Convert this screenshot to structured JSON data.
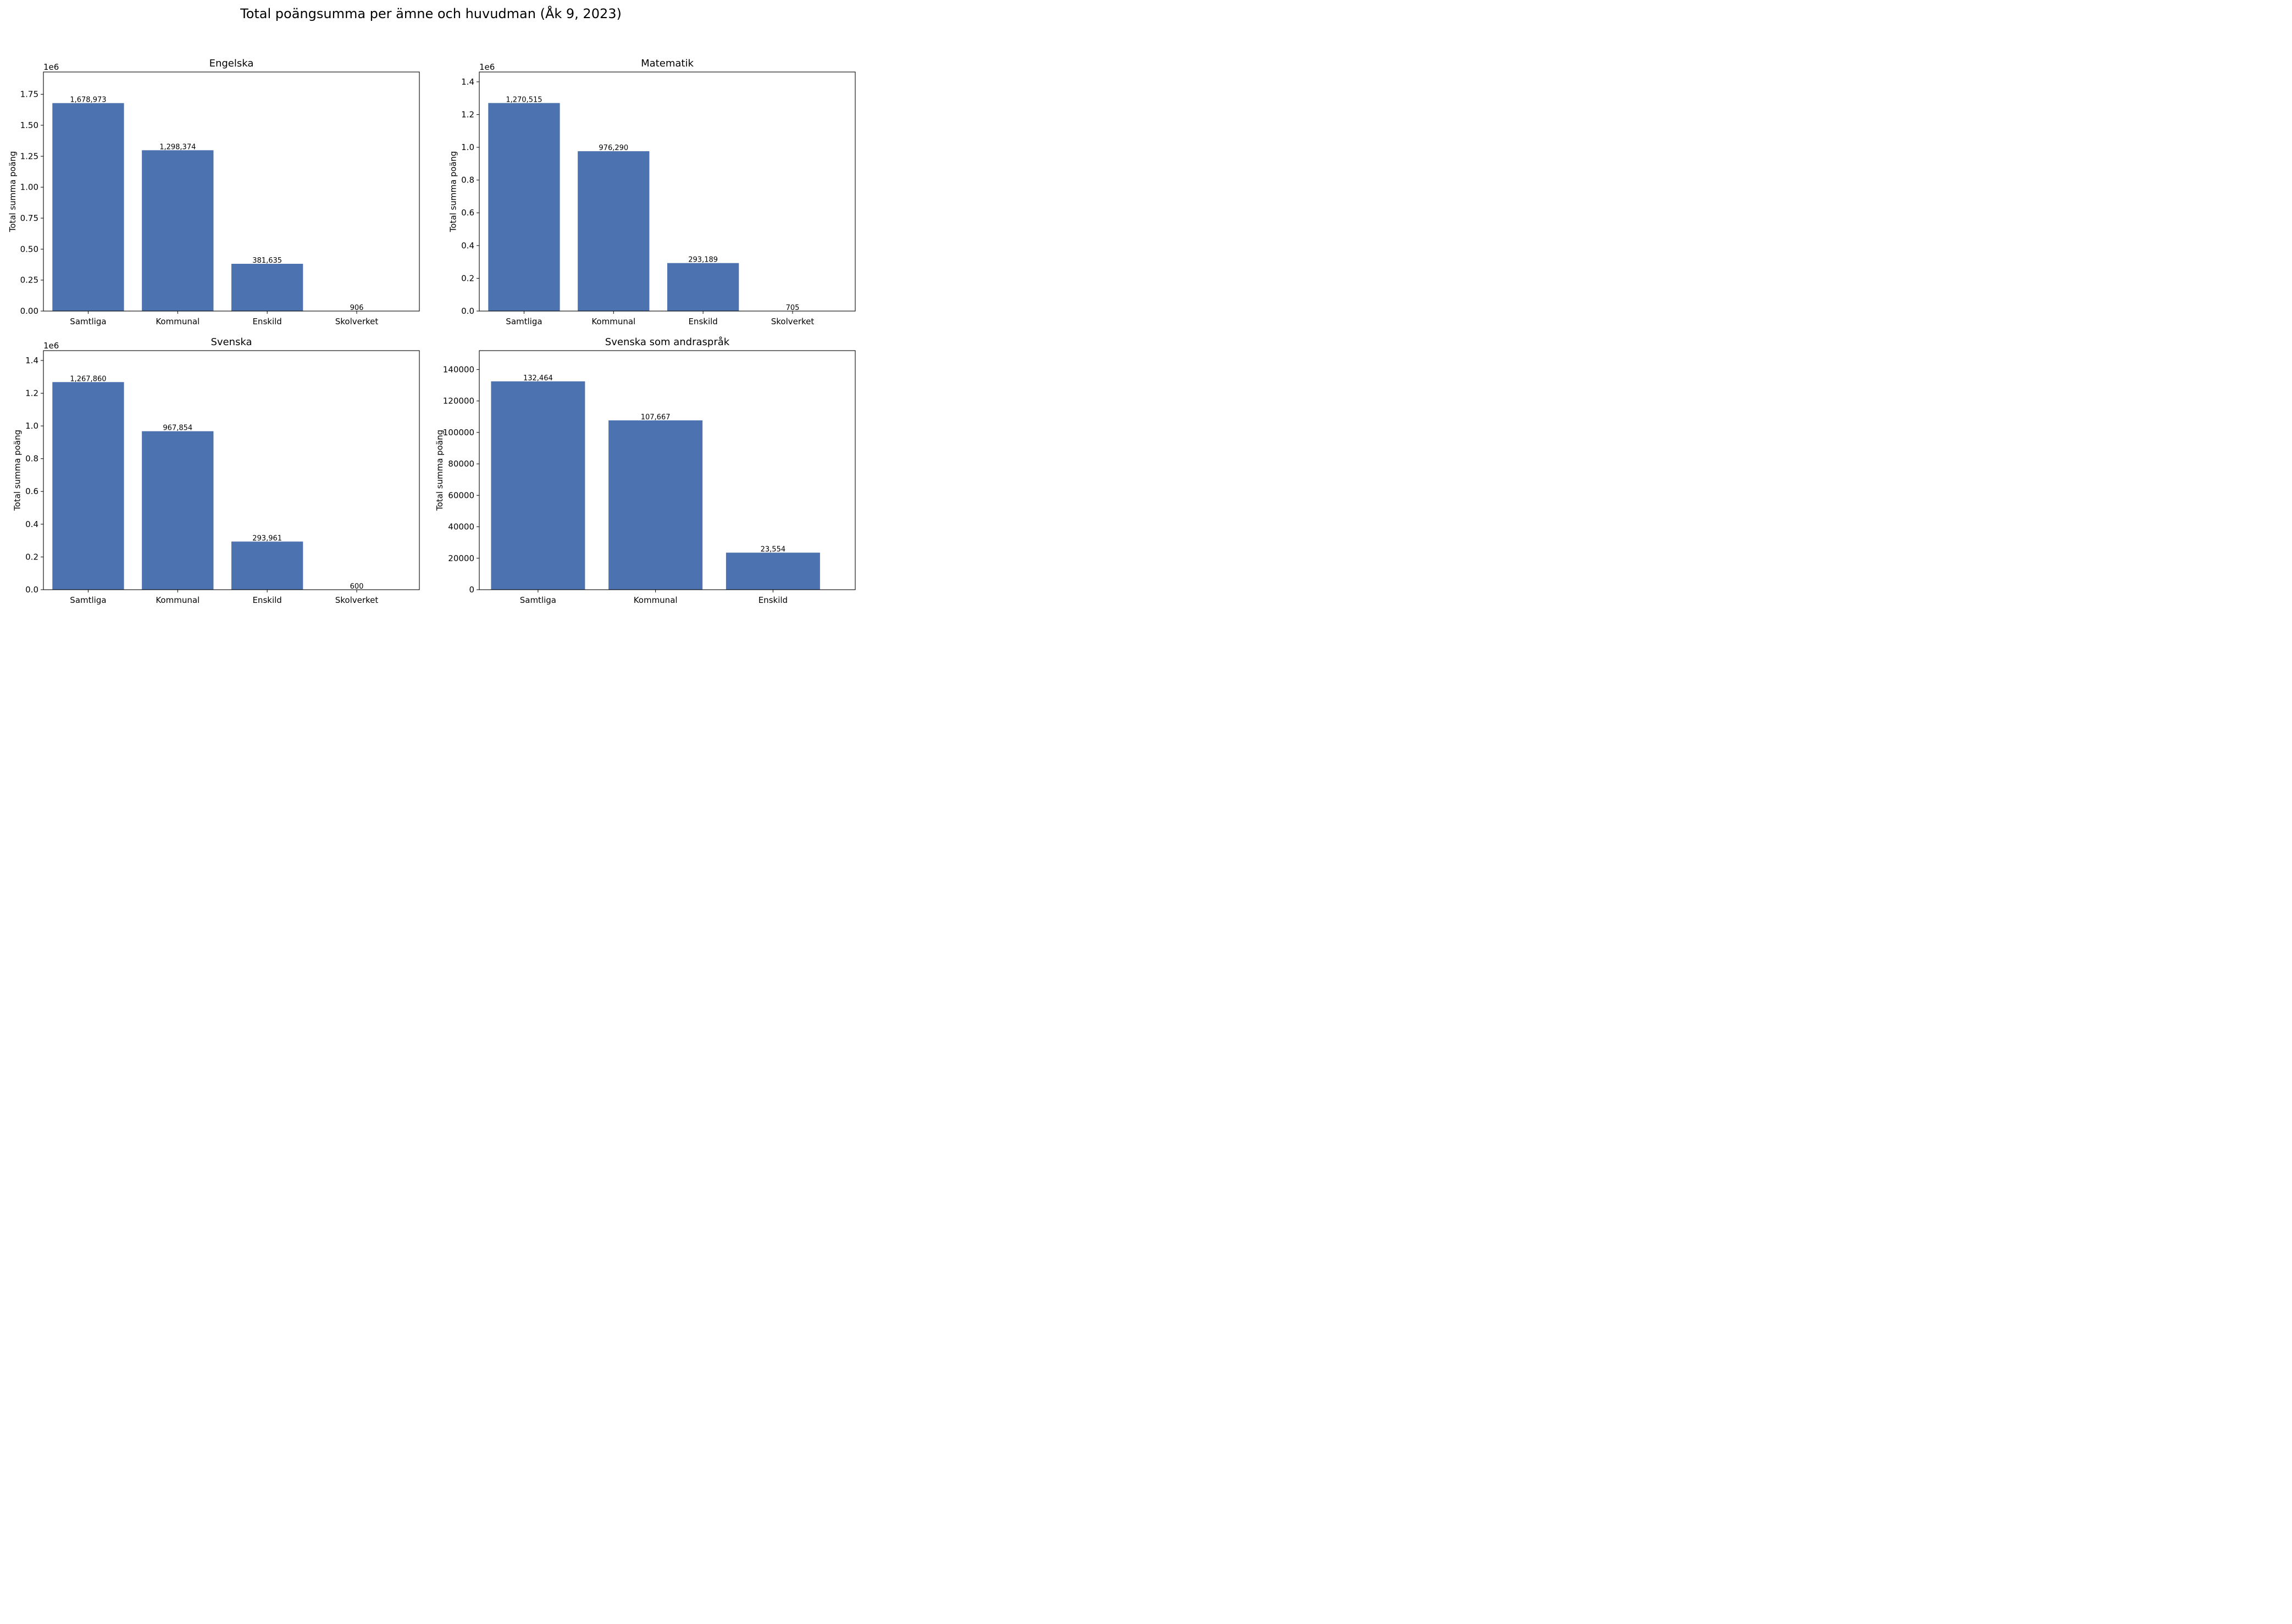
{
  "figure": {
    "suptitle": "Total poängsumma per ämne och huvudman (Åk 9, 2023)"
  },
  "colors": {
    "bar": "#4c72b0",
    "axis": "#000000",
    "background": "#ffffff"
  },
  "chart_data": [
    {
      "type": "bar",
      "title": "Engelska",
      "xlabel": "",
      "ylabel": "Total summa poäng",
      "offset_label": "1e6",
      "categories": [
        "Samtliga",
        "Kommunal",
        "Enskild",
        "Skolverket"
      ],
      "values": [
        1678973,
        1298374,
        381635,
        906
      ],
      "value_labels": [
        "1,678,973",
        "1,298,374",
        "381,635",
        "906"
      ],
      "ylim": [
        0,
        1930000
      ],
      "yticks": [
        0,
        250000,
        500000,
        750000,
        1000000,
        1250000,
        1500000,
        1750000
      ],
      "ytick_labels": [
        "0.00",
        "0.25",
        "0.50",
        "0.75",
        "1.00",
        "1.25",
        "1.50",
        "1.75"
      ],
      "grid": false
    },
    {
      "type": "bar",
      "title": "Matematik",
      "xlabel": "",
      "ylabel": "Total summa poäng",
      "offset_label": "1e6",
      "categories": [
        "Samtliga",
        "Kommunal",
        "Enskild",
        "Skolverket"
      ],
      "values": [
        1270515,
        976290,
        293189,
        705
      ],
      "value_labels": [
        "1,270,515",
        "976,290",
        "293,189",
        "705"
      ],
      "ylim": [
        0,
        1460000
      ],
      "yticks": [
        0,
        200000,
        400000,
        600000,
        800000,
        1000000,
        1200000,
        1400000
      ],
      "ytick_labels": [
        "0.0",
        "0.2",
        "0.4",
        "0.6",
        "0.8",
        "1.0",
        "1.2",
        "1.4"
      ],
      "grid": false
    },
    {
      "type": "bar",
      "title": "Svenska",
      "xlabel": "",
      "ylabel": "Total summa poäng",
      "offset_label": "1e6",
      "categories": [
        "Samtliga",
        "Kommunal",
        "Enskild",
        "Skolverket"
      ],
      "values": [
        1267860,
        967854,
        293961,
        600
      ],
      "value_labels": [
        "1,267,860",
        "967,854",
        "293,961",
        "600"
      ],
      "ylim": [
        0,
        1460000
      ],
      "yticks": [
        0,
        200000,
        400000,
        600000,
        800000,
        1000000,
        1200000,
        1400000
      ],
      "ytick_labels": [
        "0.0",
        "0.2",
        "0.4",
        "0.6",
        "0.8",
        "1.0",
        "1.2",
        "1.4"
      ],
      "grid": false
    },
    {
      "type": "bar",
      "title": "Svenska som andraspråk",
      "xlabel": "",
      "ylabel": "Total summa poäng",
      "offset_label": "",
      "categories": [
        "Samtliga",
        "Kommunal",
        "Enskild"
      ],
      "values": [
        132464,
        107667,
        23554
      ],
      "value_labels": [
        "132,464",
        "107,667",
        "23,554"
      ],
      "ylim": [
        0,
        152000
      ],
      "yticks": [
        0,
        20000,
        40000,
        60000,
        80000,
        100000,
        120000,
        140000
      ],
      "ytick_labels": [
        "0",
        "20000",
        "40000",
        "60000",
        "80000",
        "100000",
        "120000",
        "140000"
      ],
      "grid": false
    }
  ]
}
